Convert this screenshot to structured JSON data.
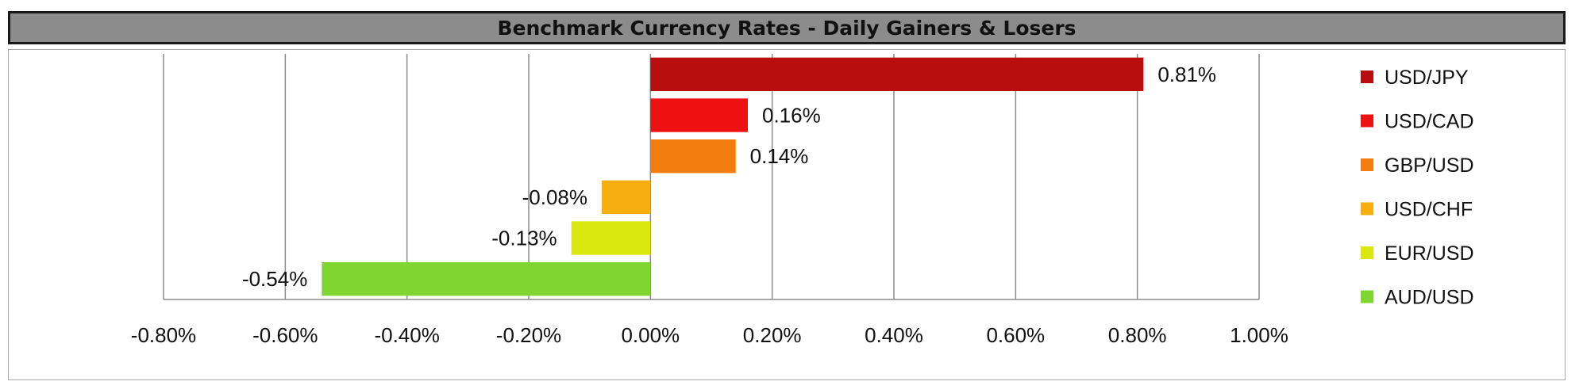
{
  "chart_data": {
    "type": "bar",
    "orientation": "horizontal",
    "title": "Benchmark Currency Rates - Daily Gainers & Losers",
    "categories": [
      "USD/JPY",
      "USD/CAD",
      "GBP/USD",
      "USD/CHF",
      "EUR/USD",
      "AUD/USD"
    ],
    "values": [
      0.81,
      0.16,
      0.14,
      -0.08,
      -0.13,
      -0.54
    ],
    "value_labels": [
      "0.81%",
      "0.16%",
      "0.14%",
      "-0.08%",
      "-0.13%",
      "-0.54%"
    ],
    "colors": [
      "#b90e0e",
      "#ee1111",
      "#f27c0f",
      "#f7ae10",
      "#dbe810",
      "#7fd630"
    ],
    "xlim": [
      -0.8,
      1.0
    ],
    "x_ticks": [
      -0.8,
      -0.6,
      -0.4,
      -0.2,
      0.0,
      0.2,
      0.4,
      0.6,
      0.8,
      1.0
    ],
    "x_tick_labels": [
      "-0.80%",
      "-0.60%",
      "-0.40%",
      "-0.20%",
      "0.00%",
      "0.20%",
      "0.40%",
      "0.60%",
      "0.80%",
      "1.00%"
    ],
    "xlabel": "",
    "ylabel": "",
    "grid": "vertical",
    "legend": "right"
  }
}
